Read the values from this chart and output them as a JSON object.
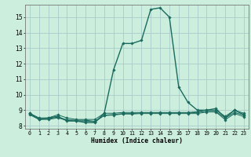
{
  "title": "",
  "xlabel": "Humidex (Indice chaleur)",
  "background_color": "#cceedd",
  "grid_color": "#aacccc",
  "line_color": "#1a6b5e",
  "xlim": [
    -0.5,
    23.5
  ],
  "ylim": [
    7.8,
    15.8
  ],
  "yticks": [
    8,
    9,
    10,
    11,
    12,
    13,
    14,
    15
  ],
  "xtick_labels": [
    "0",
    "1",
    "2",
    "3",
    "4",
    "5",
    "6",
    "7",
    "8",
    "9",
    "10",
    "11",
    "12",
    "13",
    "14",
    "15",
    "16",
    "17",
    "18",
    "19",
    "20",
    "21",
    "22",
    "23"
  ],
  "series": [
    {
      "x": [
        0,
        1,
        2,
        3,
        4,
        5,
        6,
        7,
        8,
        9,
        10,
        11,
        12,
        13,
        14,
        15,
        16,
        17,
        18,
        19,
        20,
        21,
        22,
        23
      ],
      "y": [
        8.8,
        8.4,
        8.5,
        8.6,
        8.3,
        8.3,
        8.2,
        8.2,
        8.8,
        11.6,
        13.3,
        13.3,
        13.5,
        15.5,
        15.6,
        15.0,
        10.5,
        9.5,
        9.0,
        9.0,
        9.1,
        8.5,
        9.0,
        8.7
      ]
    },
    {
      "x": [
        0,
        1,
        2,
        3,
        4,
        5,
        6,
        7,
        8,
        9,
        10,
        11,
        12,
        13,
        14,
        15,
        16,
        17,
        18,
        19,
        20,
        21,
        22,
        23
      ],
      "y": [
        8.8,
        8.5,
        8.5,
        8.7,
        8.5,
        8.4,
        8.4,
        8.4,
        8.8,
        8.8,
        8.85,
        8.85,
        8.85,
        8.85,
        8.85,
        8.85,
        8.85,
        8.85,
        8.9,
        9.0,
        9.0,
        8.6,
        9.0,
        8.8
      ]
    },
    {
      "x": [
        0,
        1,
        2,
        3,
        4,
        5,
        6,
        7,
        8,
        9,
        10,
        11,
        12,
        13,
        14,
        15,
        16,
        17,
        18,
        19,
        20,
        21,
        22,
        23
      ],
      "y": [
        8.75,
        8.45,
        8.45,
        8.55,
        8.38,
        8.35,
        8.35,
        8.28,
        8.68,
        8.72,
        8.78,
        8.78,
        8.82,
        8.82,
        8.82,
        8.82,
        8.82,
        8.82,
        8.85,
        8.92,
        8.92,
        8.48,
        8.85,
        8.68
      ]
    },
    {
      "x": [
        0,
        1,
        2,
        3,
        4,
        5,
        6,
        7,
        8,
        9,
        10,
        11,
        12,
        13,
        14,
        15,
        16,
        17,
        18,
        19,
        20,
        21,
        22,
        23
      ],
      "y": [
        8.7,
        8.4,
        8.4,
        8.5,
        8.35,
        8.3,
        8.3,
        8.25,
        8.65,
        8.68,
        8.75,
        8.75,
        8.78,
        8.78,
        8.78,
        8.78,
        8.78,
        8.78,
        8.78,
        8.88,
        8.88,
        8.38,
        8.78,
        8.58
      ]
    }
  ]
}
